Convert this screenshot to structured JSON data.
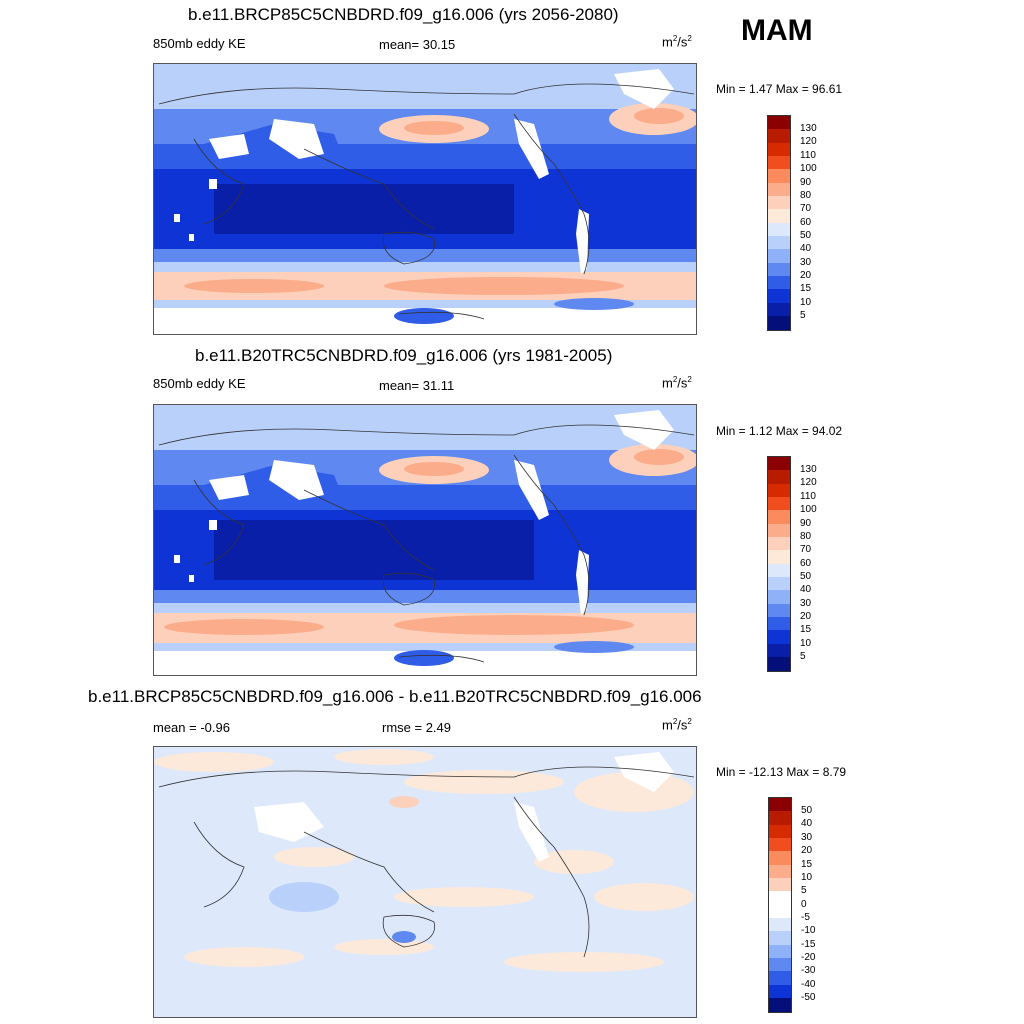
{
  "season": "MAM",
  "panels": [
    {
      "title": "b.e11.BRCP85C5CNBDRD.f09_g16.006 (yrs 2056-2080)",
      "left_label": "850mb eddy KE",
      "center_label": "mean=  30.15",
      "units": "m",
      "units_sup1": "2",
      "units_mid": "/s",
      "units_sup2": "2",
      "minmax": "Min =   1.47 Max =  96.61",
      "colorbar": [
        "130",
        "120",
        "110",
        "100",
        "90",
        "80",
        "70",
        "60",
        "50",
        "40",
        "30",
        "20",
        "15",
        "10",
        "5"
      ]
    },
    {
      "title": "b.e11.B20TRC5CNBDRD.f09_g16.006 (yrs 1981-2005)",
      "left_label": "850mb eddy KE",
      "center_label": "mean=  31.11",
      "units": "m",
      "units_sup1": "2",
      "units_mid": "/s",
      "units_sup2": "2",
      "minmax": "Min =   1.12 Max =  94.02",
      "colorbar": [
        "130",
        "120",
        "110",
        "100",
        "90",
        "80",
        "70",
        "60",
        "50",
        "40",
        "30",
        "20",
        "15",
        "10",
        "5"
      ]
    },
    {
      "title": "b.e11.BRCP85C5CNBDRD.f09_g16.006 - b.e11.B20TRC5CNBDRD.f09_g16.006",
      "left_label": "mean =  -0.96",
      "center_label": "rmse =   2.49",
      "units": "m",
      "units_sup1": "2",
      "units_mid": "/s",
      "units_sup2": "2",
      "minmax": "Min = -12.13 Max =   8.79",
      "colorbar": [
        "50",
        "40",
        "30",
        "20",
        "15",
        "10",
        "5",
        "0",
        "-5",
        "-10",
        "-15",
        "-20",
        "-30",
        "-40",
        "-50"
      ]
    }
  ],
  "colors": {
    "abs_scale": [
      "#8b0000",
      "#b71c00",
      "#d62a00",
      "#f04e1e",
      "#fb8a5c",
      "#fbac8a",
      "#fdd0bb",
      "#fde9da",
      "#dde9fb",
      "#b9d0fb",
      "#8fb1f7",
      "#5f88f0",
      "#2f5de8",
      "#0f34d6",
      "#0a1fa8",
      "#050f7a"
    ],
    "diff_scale": [
      "#8b0000",
      "#b71c00",
      "#d62a00",
      "#f04e1e",
      "#fb8a5c",
      "#fbac8a",
      "#fdd0bb",
      "#ffffff",
      "#ffffff",
      "#dde9fb",
      "#b9d0fb",
      "#8fb1f7",
      "#5f88f0",
      "#2f5de8",
      "#0f34d6",
      "#050f7a"
    ]
  }
}
